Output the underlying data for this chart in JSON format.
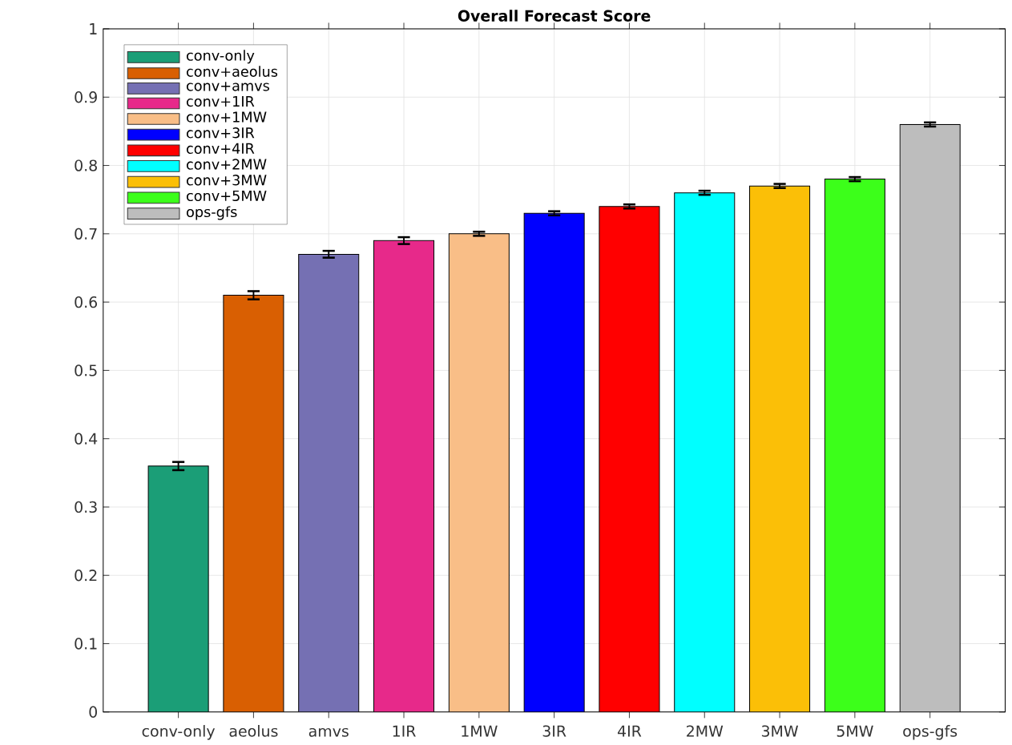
{
  "chart_data": {
    "type": "bar",
    "title": "Overall Forecast Score",
    "categories": [
      "conv-only",
      "aeolus",
      "amvs",
      "1IR",
      "1MW",
      "3IR",
      "4IR",
      "2MW",
      "3MW",
      "5MW",
      "ops-gfs"
    ],
    "series": [
      {
        "name": "conv-only",
        "color": "#1b9e77",
        "values": [
          0.36,
          null,
          null,
          null,
          null,
          null,
          null,
          null,
          null,
          null,
          null
        ],
        "errors": [
          0.006,
          null,
          null,
          null,
          null,
          null,
          null,
          null,
          null,
          null,
          null
        ]
      },
      {
        "name": "conv+aeolus",
        "color": "#d95f02",
        "values": [
          null,
          0.61,
          null,
          null,
          null,
          null,
          null,
          null,
          null,
          null,
          null
        ],
        "errors": [
          null,
          0.006,
          null,
          null,
          null,
          null,
          null,
          null,
          null,
          null,
          null
        ]
      },
      {
        "name": "conv+amvs",
        "color": "#7570b3",
        "values": [
          null,
          null,
          0.67,
          null,
          null,
          null,
          null,
          null,
          null,
          null,
          null
        ],
        "errors": [
          null,
          null,
          0.005,
          null,
          null,
          null,
          null,
          null,
          null,
          null,
          null
        ]
      },
      {
        "name": "conv+1IR",
        "color": "#e7298a",
        "values": [
          null,
          null,
          null,
          0.69,
          null,
          null,
          null,
          null,
          null,
          null,
          null
        ],
        "errors": [
          null,
          null,
          null,
          0.005,
          null,
          null,
          null,
          null,
          null,
          null,
          null
        ]
      },
      {
        "name": "conv+1MW",
        "color": "#f9be87",
        "values": [
          null,
          null,
          null,
          null,
          0.7,
          null,
          null,
          null,
          null,
          null,
          null
        ],
        "errors": [
          null,
          null,
          null,
          null,
          0.003,
          null,
          null,
          null,
          null,
          null,
          null
        ]
      },
      {
        "name": "conv+3IR",
        "color": "#0000ff",
        "values": [
          null,
          null,
          null,
          null,
          null,
          0.73,
          null,
          null,
          null,
          null,
          null
        ],
        "errors": [
          null,
          null,
          null,
          null,
          null,
          0.003,
          null,
          null,
          null,
          null,
          null
        ]
      },
      {
        "name": "conv+4IR",
        "color": "#ff0000",
        "values": [
          null,
          null,
          null,
          null,
          null,
          null,
          0.74,
          null,
          null,
          null,
          null
        ],
        "errors": [
          null,
          null,
          null,
          null,
          null,
          null,
          0.003,
          null,
          null,
          null,
          null
        ]
      },
      {
        "name": "conv+2MW",
        "color": "#00ffff",
        "values": [
          null,
          null,
          null,
          null,
          null,
          null,
          null,
          0.76,
          null,
          null,
          null
        ],
        "errors": [
          null,
          null,
          null,
          null,
          null,
          null,
          null,
          0.003,
          null,
          null,
          null
        ]
      },
      {
        "name": "conv+3MW",
        "color": "#fbbf07",
        "values": [
          null,
          null,
          null,
          null,
          null,
          null,
          null,
          null,
          0.77,
          null,
          null
        ],
        "errors": [
          null,
          null,
          null,
          null,
          null,
          null,
          null,
          null,
          0.003,
          null,
          null
        ]
      },
      {
        "name": "conv+5MW",
        "color": "#3cff1a",
        "values": [
          null,
          null,
          null,
          null,
          null,
          null,
          null,
          null,
          null,
          0.78,
          null
        ],
        "errors": [
          null,
          null,
          null,
          null,
          null,
          null,
          null,
          null,
          null,
          0.003,
          null
        ]
      },
      {
        "name": "ops-gfs",
        "color": "#bdbdbd",
        "values": [
          null,
          null,
          null,
          null,
          null,
          null,
          null,
          null,
          null,
          null,
          0.86
        ],
        "errors": [
          null,
          null,
          null,
          null,
          null,
          null,
          null,
          null,
          null,
          null,
          0.003
        ]
      }
    ],
    "ylim": [
      0,
      1
    ],
    "yticks": [
      0,
      0.1,
      0.2,
      0.3,
      0.4,
      0.5,
      0.6,
      0.7,
      0.8,
      0.9,
      1
    ],
    "grid": true,
    "legend": "top left"
  }
}
